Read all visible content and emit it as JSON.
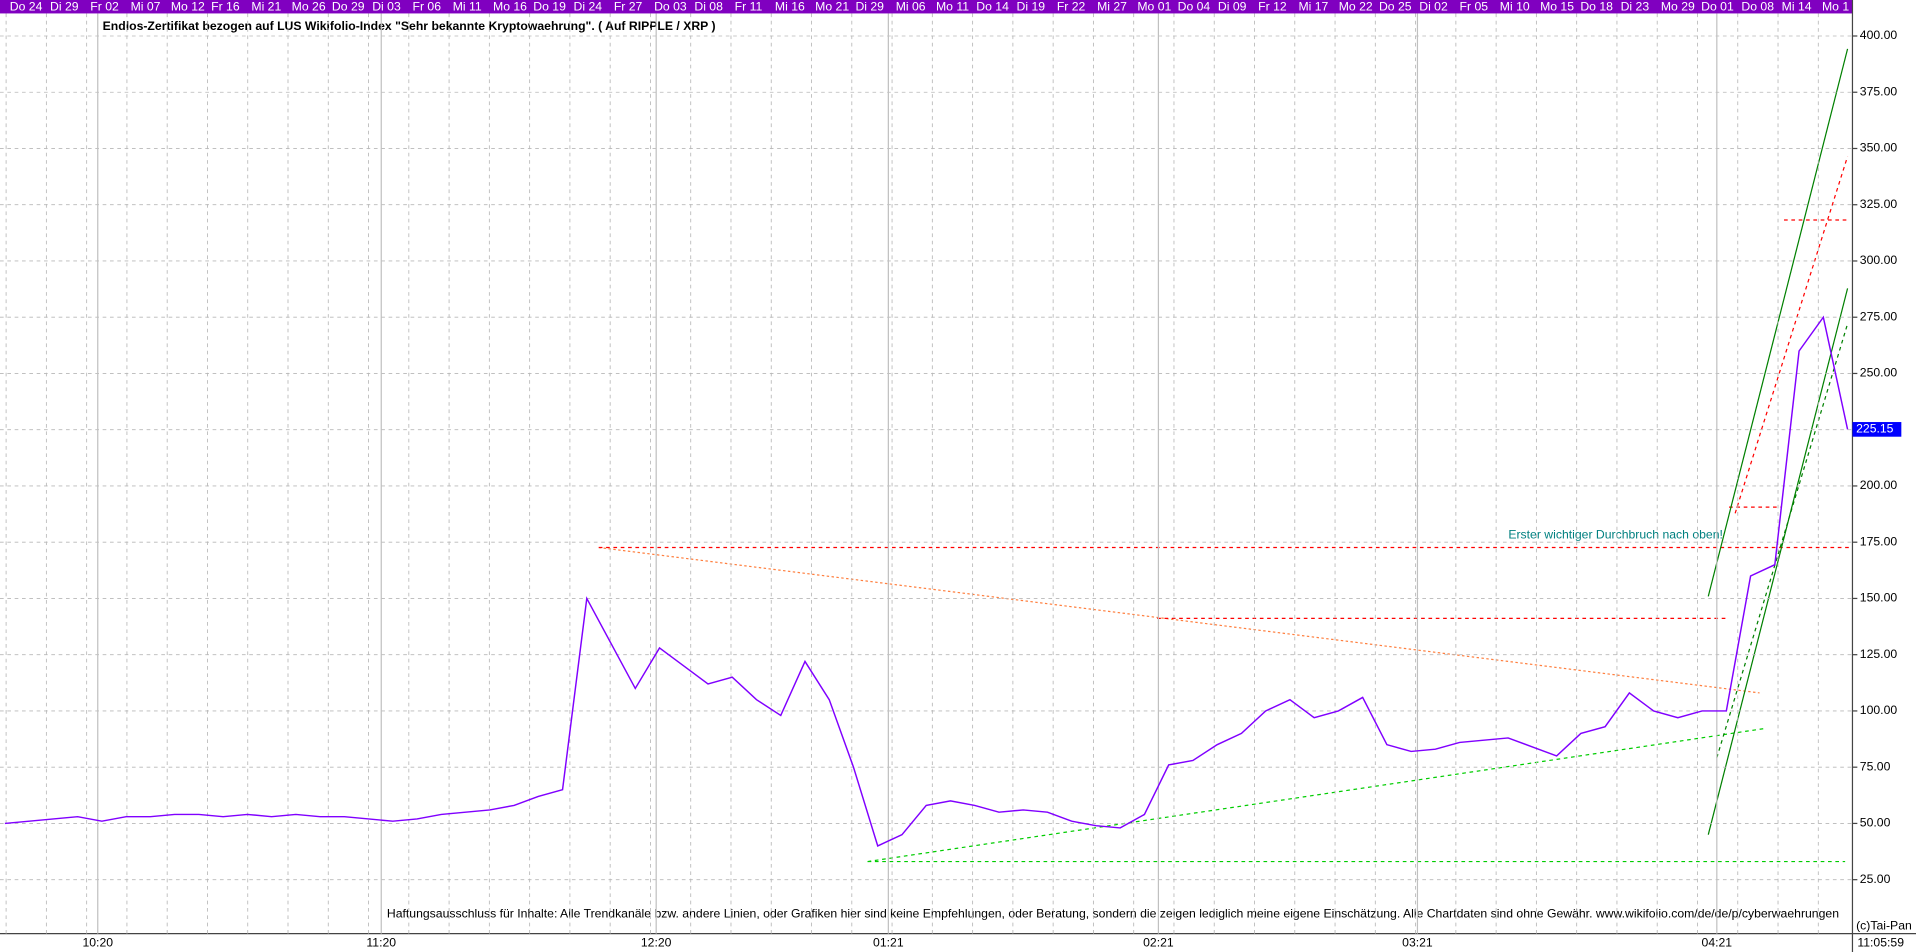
{
  "chart_data": {
    "type": "line",
    "title": "Endlos-Zertifikat bezogen auf LUS Wikifolio-Index \"Sehr bekannte Kryptowaehrung\". ( Auf RIPPLE / XRP )",
    "annotation": "Erster wichtiger Durchbruch nach oben!",
    "disclaimer": "Haftungsausschluss für Inhalte: Alle Trendkanäle bzw. andere Linien, oder Grafiken hier sind keine Empfehlungen, oder Beratung, sondern die zeigen lediglich meine eigene Einschätzung. Alle Chartdaten sind ohne Gewähr.  www.wikifolio.com/de/de/p/cyberwaehrungen",
    "copyright": "(c)Tai-Pan",
    "time": "11:05:59",
    "top_labels": [
      "Do 24",
      "Di 29",
      "Fr 02",
      "Mi 07",
      "Mo 12",
      "Fr 16",
      "Mi 21",
      "Mo 26",
      "Do 29",
      "Di 03",
      "Fr 06",
      "Mi 11",
      "Mo 16",
      "Do 19",
      "Di 24",
      "Fr 27",
      "Do 03",
      "Di 08",
      "Fr 11",
      "Mi 16",
      "Mo 21",
      "Di 29",
      "Mi 06",
      "Mo 11",
      "Do 14",
      "Di 19",
      "Fr 22",
      "Mi 27",
      "Mo 01",
      "Do 04",
      "Di 09",
      "Fr 12",
      "Mi 17",
      "Mo 22",
      "Do 25",
      "Di 02",
      "Fr 05",
      "Mi 10",
      "Mo 15",
      "Do 18",
      "Di 23",
      "Mo 29",
      "Do 01",
      "Do 08",
      "Mi 14",
      "Mo 1"
    ],
    "x_labels": [
      "10:20",
      "11:20",
      "12:20",
      "01:21",
      "02:21",
      "03:21",
      "04:21"
    ],
    "series": [
      {
        "color": "#8000ff",
        "values": [
          50,
          51,
          52,
          53,
          51,
          53,
          53,
          54,
          54,
          53,
          54,
          53,
          54,
          53,
          53,
          52,
          51,
          52,
          54,
          55,
          56,
          58,
          62,
          65,
          150,
          130,
          110,
          128,
          120,
          112,
          115,
          105,
          98,
          122,
          105,
          75,
          40,
          45,
          58,
          60,
          58,
          55,
          56,
          55,
          51,
          49,
          48,
          54,
          76,
          78,
          85,
          90,
          100,
          105,
          97,
          100,
          106,
          85,
          82,
          83,
          86,
          87,
          88,
          84,
          80,
          90,
          93,
          108,
          100,
          97,
          100,
          100,
          160,
          165,
          260,
          275,
          225.15
        ],
        "value_labels": {
          "76": "225.15"
        }
      }
    ],
    "ylim": [
      1,
      416
    ],
    "yticks": [
      {
        "value": 25,
        "label": "25.00"
      },
      {
        "value": 50,
        "label": "50.00"
      },
      {
        "value": 75,
        "label": "75.00"
      },
      {
        "value": 100,
        "label": "100.00"
      },
      {
        "value": 125,
        "label": "125.00"
      },
      {
        "value": 150,
        "label": "150.00"
      },
      {
        "value": 175,
        "label": "175.00"
      },
      {
        "value": 200,
        "label": "200.00"
      },
      {
        "value": 225,
        "label": "225.00"
      },
      {
        "value": 250,
        "label": "250.00"
      },
      {
        "value": 275,
        "label": "275.00"
      },
      {
        "value": 300,
        "label": "300.00"
      },
      {
        "value": 325,
        "label": "325.00"
      },
      {
        "value": 350,
        "label": "350.00"
      },
      {
        "value": 375,
        "label": "375.00"
      },
      {
        "value": 400,
        "label": "400.00"
      }
    ],
    "grid": true
  }
}
